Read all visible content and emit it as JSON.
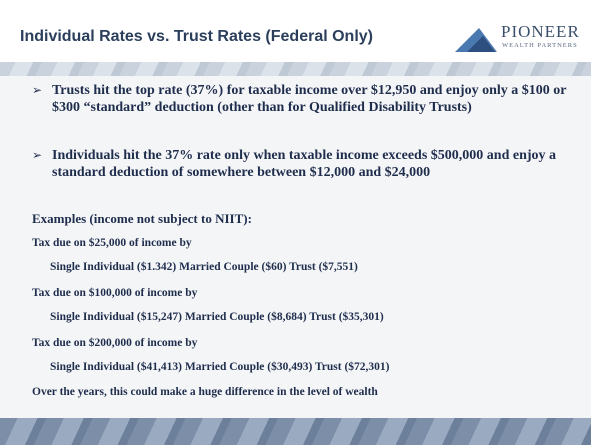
{
  "header": {
    "title": "Individual Rates vs. Trust Rates (Federal Only)",
    "logo": {
      "name": "PIONEER",
      "tagline": "WEALTH PARTNERS"
    }
  },
  "bullets": [
    "Trusts hit the top rate (37%) for taxable income over $12,950 and enjoy only a $100 or $300 “standard” deduction (other than for Qualified Disability Trusts)",
    "Individuals hit the 37% rate only when taxable income exceeds $500,000 and enjoy a standard deduction of somewhere between $12,000 and $24,000"
  ],
  "examples": {
    "heading": "Examples (income not subject to NIIT):",
    "items": [
      {
        "label": "Tax due on $25,000 of income by",
        "detail": "Single Individual ($1.342) Married Couple ($60) Trust ($7,551)"
      },
      {
        "label": "Tax due on $100,000 of income by",
        "detail": "Single Individual ($15,247)  Married Couple ($8,684) Trust ($35,301)"
      },
      {
        "label": "Tax due on $200,000 of income by",
        "detail": "Single Individual ($41,413)  Married Couple ($30,493) Trust ($72,301)"
      }
    ],
    "conclusion": "Over the years, this could make a huge difference in the level of wealth"
  }
}
